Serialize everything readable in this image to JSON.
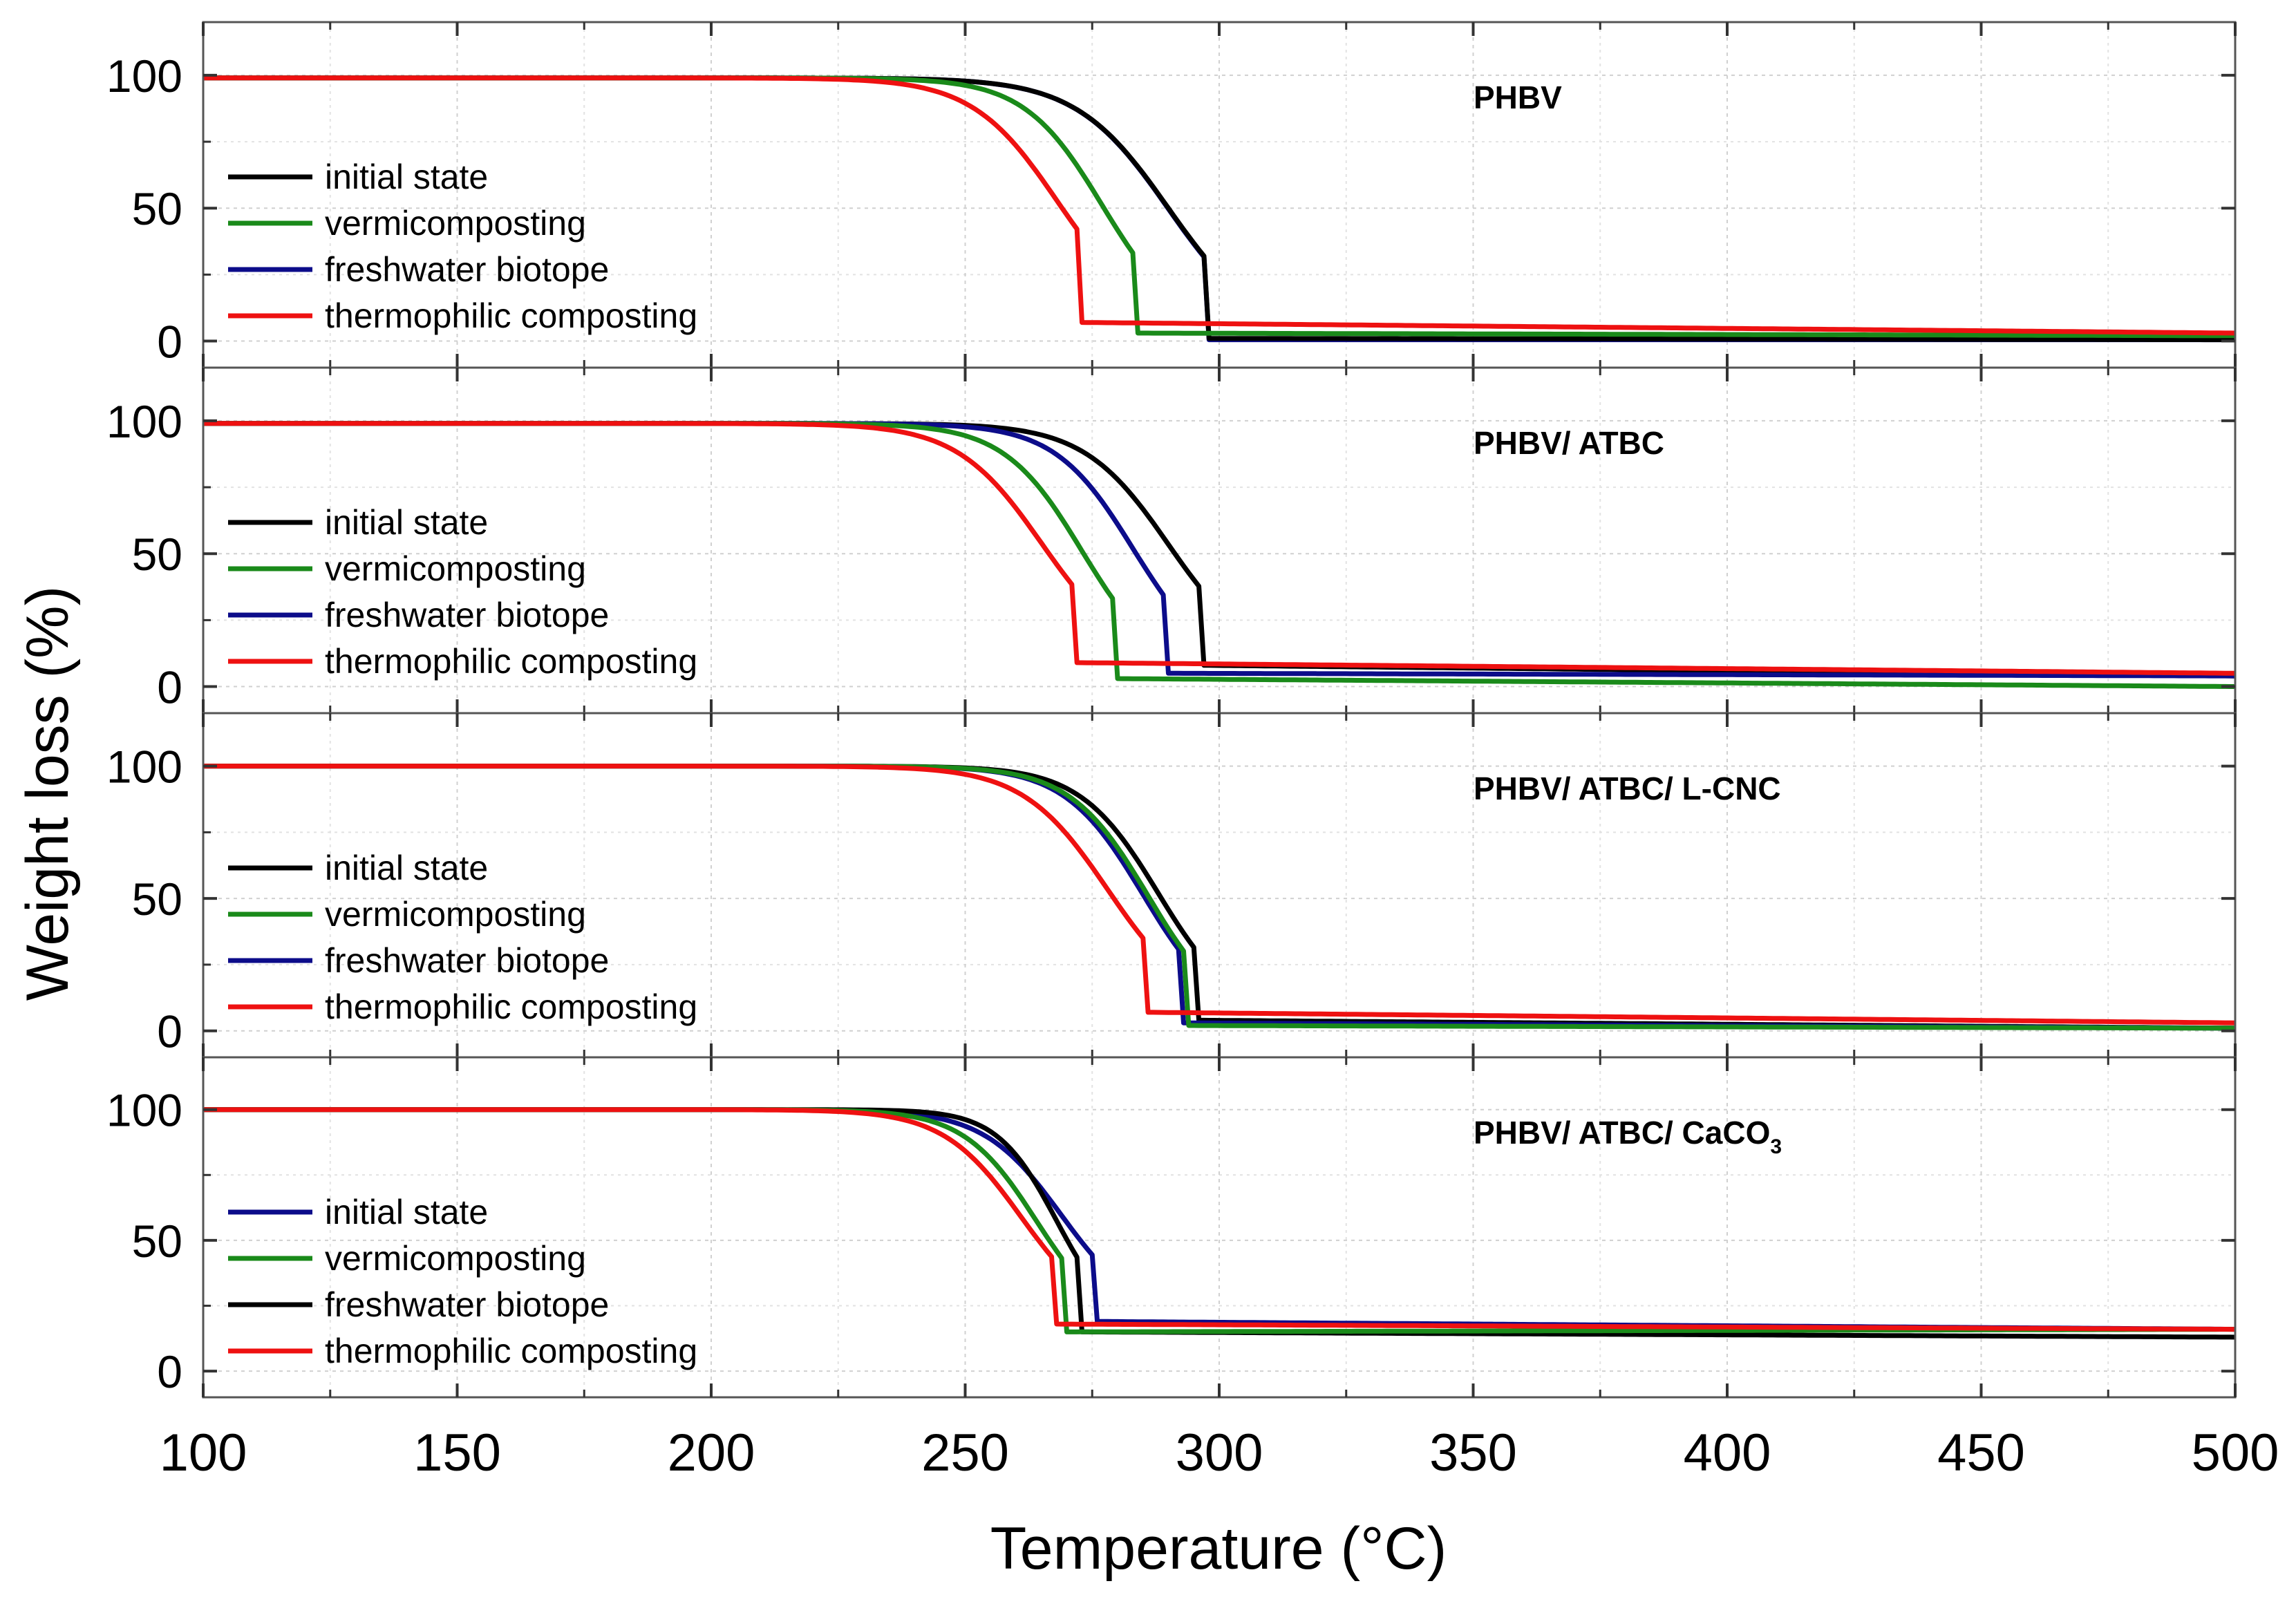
{
  "chart_data": {
    "type": "line",
    "xlabel": "Temperature (°C)",
    "ylabel": "Weight loss (%)",
    "xlim": [
      100,
      500
    ],
    "xticks": [
      100,
      150,
      200,
      250,
      300,
      350,
      400,
      450,
      500
    ],
    "ylim": [
      -10,
      120
    ],
    "yticks": [
      0,
      50,
      100
    ],
    "grid": true,
    "legend_position": "left",
    "panels": [
      {
        "title": "PHBV",
        "title_sub": "",
        "legend": [
          {
            "label": "initial state",
            "color": "#000000"
          },
          {
            "label": "vermicomposting",
            "color": "#1a8a1a"
          },
          {
            "label": "freshwater biotope",
            "color": "#0c0c8a"
          },
          {
            "label": "thermophilic composting",
            "color": "#ee1111"
          }
        ],
        "series": [
          {
            "name": "freshwater biotope",
            "color": "#0c0c8a",
            "draw": 0,
            "onset": 290,
            "k": 0.11,
            "residue": 0.5,
            "end_residue": 0.5,
            "end": 298,
            "plateau": 99
          },
          {
            "name": "initial state",
            "color": "#000000",
            "draw": 1,
            "onset": 290,
            "k": 0.11,
            "residue": 1,
            "end_residue": 0.5,
            "end": 298,
            "plateau": 99
          },
          {
            "name": "vermicomposting",
            "color": "#1a8a1a",
            "draw": 2,
            "onset": 277,
            "k": 0.13,
            "residue": 3,
            "end_residue": 2,
            "end": 284,
            "plateau": 99
          },
          {
            "name": "thermophilic composting",
            "color": "#ee1111",
            "draw": 3,
            "onset": 268,
            "k": 0.12,
            "residue": 7,
            "end_residue": 3,
            "end": 273,
            "plateau": 99
          }
        ]
      },
      {
        "title": "PHBV/ ATBC",
        "title_sub": "",
        "legend": [
          {
            "label": "initial state",
            "color": "#000000"
          },
          {
            "label": "vermicomposting",
            "color": "#1a8a1a"
          },
          {
            "label": "freshwater biotope",
            "color": "#0c0c8a"
          },
          {
            "label": "thermophilic composting",
            "color": "#ee1111"
          }
        ],
        "series": [
          {
            "name": "initial state",
            "color": "#000000",
            "draw": 0,
            "onset": 290,
            "k": 0.12,
            "residue": 8,
            "end_residue": 4,
            "end": 297,
            "plateau": 99
          },
          {
            "name": "freshwater biotope",
            "color": "#0c0c8a",
            "draw": 1,
            "onset": 283,
            "k": 0.13,
            "residue": 5,
            "end_residue": 4,
            "end": 290,
            "plateau": 99
          },
          {
            "name": "vermicomposting",
            "color": "#1a8a1a",
            "draw": 2,
            "onset": 273,
            "k": 0.13,
            "residue": 3,
            "end_residue": 0,
            "end": 280,
            "plateau": 99
          },
          {
            "name": "thermophilic composting",
            "color": "#ee1111",
            "draw": 3,
            "onset": 265,
            "k": 0.12,
            "residue": 9,
            "end_residue": 5,
            "end": 272,
            "plateau": 99
          }
        ]
      },
      {
        "title": "PHBV/ ATBC/ L-CNC",
        "title_sub": "",
        "legend": [
          {
            "label": "initial state",
            "color": "#000000"
          },
          {
            "label": "vermicomposting",
            "color": "#1a8a1a"
          },
          {
            "label": "freshwater biotope",
            "color": "#0c0c8a"
          },
          {
            "label": "thermophilic composting",
            "color": "#ee1111"
          }
        ],
        "series": [
          {
            "name": "initial state",
            "color": "#000000",
            "draw": 0,
            "onset": 288,
            "k": 0.13,
            "residue": 4,
            "end_residue": 1,
            "end": 296,
            "plateau": 100
          },
          {
            "name": "freshwater biotope",
            "color": "#0c0c8a",
            "draw": 1,
            "onset": 285,
            "k": 0.13,
            "residue": 3,
            "end_residue": 1,
            "end": 293,
            "plateau": 100
          },
          {
            "name": "vermicomposting",
            "color": "#1a8a1a",
            "draw": 2,
            "onset": 286,
            "k": 0.13,
            "residue": 2,
            "end_residue": 1,
            "end": 294,
            "plateau": 100
          },
          {
            "name": "thermophilic composting",
            "color": "#ee1111",
            "draw": 3,
            "onset": 278,
            "k": 0.12,
            "residue": 7,
            "end_residue": 3,
            "end": 286,
            "plateau": 100
          }
        ]
      },
      {
        "title": "PHBV/ ATBC/ CaCO",
        "title_sub": "3",
        "legend": [
          {
            "label": "initial state",
            "color": "#0c0c8a"
          },
          {
            "label": "vermicomposting",
            "color": "#1a8a1a"
          },
          {
            "label": "freshwater biotope",
            "color": "#000000"
          },
          {
            "label": "thermophilic composting",
            "color": "#ee1111"
          }
        ],
        "series": [
          {
            "name": "initial state",
            "color": "#0c0c8a",
            "draw": 0,
            "onset": 269,
            "k": 0.13,
            "residue": 19,
            "end_residue": 16,
            "end": 276,
            "plateau": 100
          },
          {
            "name": "freshwater biotope",
            "color": "#000000",
            "draw": 1,
            "onset": 268,
            "k": 0.17,
            "residue": 15,
            "end_residue": 13,
            "end": 273,
            "plateau": 100
          },
          {
            "name": "vermicomposting",
            "color": "#1a8a1a",
            "draw": 2,
            "onset": 264,
            "k": 0.14,
            "residue": 15,
            "end_residue": 16,
            "end": 270,
            "plateau": 100
          },
          {
            "name": "thermophilic composting",
            "color": "#ee1111",
            "draw": 3,
            "onset": 261,
            "k": 0.13,
            "residue": 18,
            "end_residue": 16,
            "end": 268,
            "plateau": 100
          }
        ]
      }
    ]
  }
}
